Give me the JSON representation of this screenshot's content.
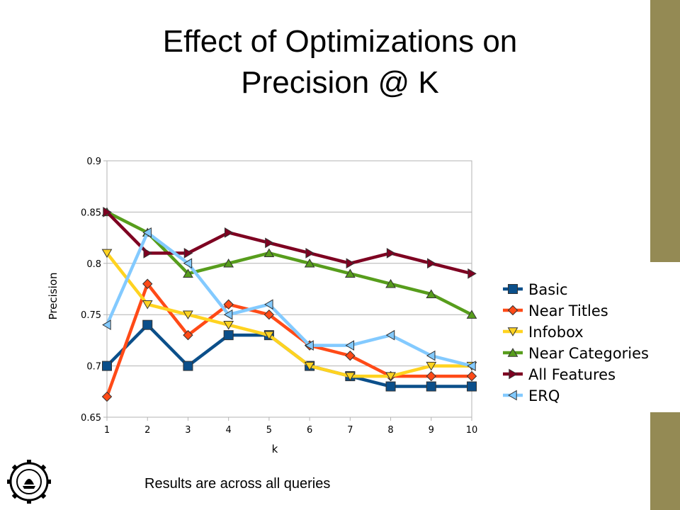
{
  "slide": {
    "title_line1": "Effect of Optimizations on",
    "title_line2": "Precision @ K",
    "caption": "Results are across all queries",
    "accent_color": "#948a54"
  },
  "chart_data": {
    "type": "line",
    "title": "",
    "xlabel": "k",
    "ylabel": "Precision",
    "x": [
      1,
      2,
      3,
      4,
      5,
      6,
      7,
      8,
      9,
      10
    ],
    "ylim": [
      0.65,
      0.9
    ],
    "yticks": [
      0.65,
      0.7,
      0.75,
      0.8,
      0.85,
      0.9
    ],
    "ytick_labels": [
      "0.65",
      "0.7",
      "0.75",
      "0.8",
      "0.85",
      "0.9"
    ],
    "grid": true,
    "legend_position": "right",
    "series": [
      {
        "name": "Basic",
        "color": "#0b4f8a",
        "marker": "square",
        "values": [
          0.7,
          0.74,
          0.7,
          0.73,
          0.73,
          0.7,
          0.69,
          0.68,
          0.68,
          0.68
        ]
      },
      {
        "name": "Near Titles",
        "color": "#ff4a17",
        "marker": "diamond",
        "values": [
          0.67,
          0.78,
          0.73,
          0.76,
          0.75,
          0.72,
          0.71,
          0.69,
          0.69,
          0.69
        ]
      },
      {
        "name": "Infobox",
        "color": "#ffd320",
        "marker": "triangle-down",
        "values": [
          0.81,
          0.76,
          0.75,
          0.74,
          0.73,
          0.7,
          0.69,
          0.69,
          0.7,
          0.7
        ]
      },
      {
        "name": "Near Categories",
        "color": "#579d1c",
        "marker": "triangle-up",
        "values": [
          0.85,
          0.83,
          0.79,
          0.8,
          0.81,
          0.8,
          0.79,
          0.78,
          0.77,
          0.75
        ]
      },
      {
        "name": "All Features",
        "color": "#7e0021",
        "marker": "triangle-right",
        "values": [
          0.85,
          0.81,
          0.81,
          0.83,
          0.82,
          0.81,
          0.8,
          0.81,
          0.8,
          0.79
        ]
      },
      {
        "name": "ERQ",
        "color": "#83caff",
        "marker": "triangle-left",
        "values": [
          0.74,
          0.83,
          0.8,
          0.75,
          0.76,
          0.72,
          0.72,
          0.73,
          0.71,
          0.7
        ]
      }
    ]
  }
}
